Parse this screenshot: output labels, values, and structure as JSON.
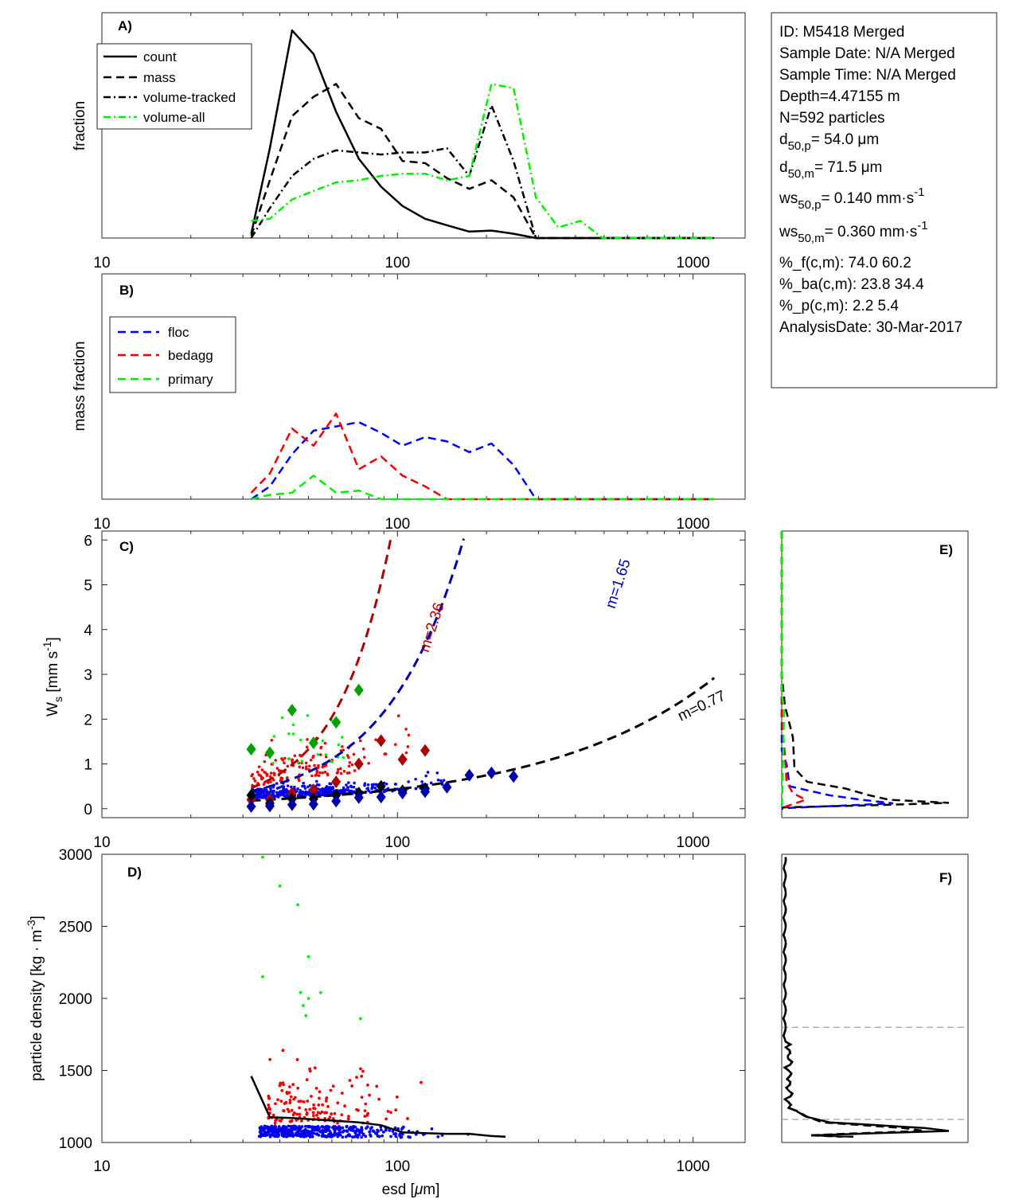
{
  "colors": {
    "green": "#00ee00",
    "red": "#ee0000",
    "blue": "#0000ee",
    "darkred": "#aa0000",
    "darkblue": "#0000aa",
    "dkgreen": "#00a000",
    "black": "#000000"
  },
  "info_lines": [
    "ID: M5418 Merged",
    "Sample Date: N/A Merged",
    "Sample Time: N/A Merged",
    "Depth=4.47155 m",
    "N=592 particles"
  ],
  "info_sub": [
    {
      "pre": "d",
      "sub": "50,p",
      "post": "=  54.0 μm"
    },
    {
      "pre": "d",
      "sub": "50,m",
      "post": "=  71.5 μm"
    },
    {
      "pre": "ws",
      "sub": "50,p",
      "post": "= 0.140 mm·s",
      "sup": "-1"
    },
    {
      "pre": "ws",
      "sub": "50,m",
      "post": "= 0.360 mm·s",
      "sup": "-1"
    }
  ],
  "info_tail": [
    "%_f(c,m): 74.0 60.2",
    "%_ba(c,m): 23.8 34.4",
    "%_p(c,m): 2.2 5.4",
    "AnalysisDate: 30-Mar-2017"
  ],
  "chart_data": [
    {
      "panel": "A)",
      "type": "line",
      "ylabel": "fraction",
      "xscale": "log",
      "xlim": [
        10,
        1500
      ],
      "ylim": [
        0,
        1
      ],
      "xticks": [
        "10",
        "100",
        "1000"
      ],
      "legend": [
        "count",
        "mass",
        "volume-tracked",
        "volume-all"
      ],
      "x": [
        32,
        37,
        44,
        52,
        62,
        74,
        88,
        104,
        124,
        147,
        175,
        208,
        247,
        294,
        350,
        416,
        494,
        588,
        700,
        832,
        990,
        1177
      ],
      "series": [
        {
          "name": "count",
          "style": "solid",
          "color": "#000000",
          "values": [
            0.02,
            0.42,
            0.97,
            0.86,
            0.59,
            0.37,
            0.24,
            0.15,
            0.09,
            0.06,
            0.03,
            0.035,
            0.02,
            0.0,
            0,
            0,
            0,
            0,
            0,
            0,
            0,
            0
          ]
        },
        {
          "name": "mass",
          "style": "dashed",
          "color": "#000000",
          "values": [
            0.01,
            0.27,
            0.57,
            0.66,
            0.72,
            0.56,
            0.51,
            0.36,
            0.35,
            0.28,
            0.23,
            0.27,
            0.19,
            0.0,
            0,
            0,
            0,
            0,
            0,
            0,
            0,
            0
          ]
        },
        {
          "name": "volume-tracked",
          "style": "dashdot",
          "color": "#000000",
          "values": [
            0.0,
            0.14,
            0.29,
            0.37,
            0.41,
            0.4,
            0.39,
            0.4,
            0.4,
            0.42,
            0.29,
            0.62,
            0.36,
            0.0,
            0,
            0,
            0,
            0,
            0,
            0,
            0,
            0
          ]
        },
        {
          "name": "volume-all",
          "style": "dashdot",
          "color": "#00ee00",
          "values": [
            0.08,
            0.09,
            0.18,
            0.22,
            0.26,
            0.27,
            0.29,
            0.3,
            0.3,
            0.27,
            0.29,
            0.72,
            0.7,
            0.19,
            0.05,
            0.08,
            0,
            0,
            0,
            0,
            0,
            0
          ]
        }
      ]
    },
    {
      "panel": "B)",
      "type": "line",
      "ylabel": "mass fraction",
      "xscale": "log",
      "xlim": [
        10,
        1500
      ],
      "ylim": [
        0,
        1
      ],
      "xticks": [
        "10",
        "100",
        "1000"
      ],
      "legend": [
        "floc",
        "bedagg",
        "primary"
      ],
      "x": [
        32,
        37,
        44,
        52,
        62,
        74,
        88,
        104,
        124,
        147,
        175,
        208,
        247,
        294,
        350,
        416,
        494,
        588,
        700,
        832,
        990,
        1177
      ],
      "series": [
        {
          "name": "floc",
          "style": "dashed",
          "color": "#0000ee",
          "values": [
            0.0,
            0.06,
            0.21,
            0.32,
            0.34,
            0.36,
            0.31,
            0.25,
            0.29,
            0.27,
            0.22,
            0.26,
            0.16,
            0.0,
            0,
            0,
            0,
            0,
            0,
            0,
            0,
            0
          ]
        },
        {
          "name": "bedagg",
          "style": "dashed",
          "color": "#ee0000",
          "values": [
            0.03,
            0.12,
            0.33,
            0.25,
            0.4,
            0.14,
            0.2,
            0.11,
            0.06,
            0.0,
            0,
            0,
            0,
            0,
            0,
            0,
            0,
            0,
            0,
            0,
            0,
            0
          ]
        },
        {
          "name": "primary",
          "style": "dashed",
          "color": "#00ee00",
          "values": [
            0.0,
            0.02,
            0.03,
            0.11,
            0.03,
            0.04,
            0.0,
            0,
            0,
            0,
            0,
            0,
            0,
            0,
            0,
            0,
            0,
            0,
            0,
            0,
            0,
            0
          ]
        }
      ]
    },
    {
      "panel": "C)",
      "type": "scatter",
      "ylabel": "W_s [mm s^-1]",
      "xscale": "log",
      "xlim": [
        10,
        1500
      ],
      "ylim": [
        -0.2,
        6.2
      ],
      "xticks": [
        "10",
        "100",
        "1000"
      ],
      "yticks": [
        "0",
        "1",
        "2",
        "3",
        "4",
        "5",
        "6"
      ],
      "fits": [
        {
          "label": "m=2.36",
          "color": "#aa0000",
          "a": 0.00013,
          "m": 2.36
        },
        {
          "label": "m=1.65",
          "color": "#0000aa",
          "a": 0.00129,
          "m": 1.65
        },
        {
          "label": "m=0.77",
          "color": "#000000",
          "a": 0.0126,
          "m": 0.77
        }
      ],
      "diamonds": [
        {
          "color": "#00a000",
          "points": [
            [
              32,
              1.33
            ],
            [
              37,
              1.25
            ],
            [
              44,
              2.2
            ],
            [
              52,
              1.47
            ],
            [
              62,
              1.93
            ],
            [
              74,
              2.65
            ]
          ]
        },
        {
          "color": "#aa0000",
          "points": [
            [
              32,
              0.2
            ],
            [
              37,
              0.2
            ],
            [
              44,
              0.35
            ],
            [
              52,
              0.42
            ],
            [
              62,
              0.6
            ],
            [
              74,
              1.0
            ],
            [
              88,
              1.52
            ],
            [
              104,
              1.1
            ],
            [
              124,
              1.3
            ]
          ]
        },
        {
          "color": "#000000",
          "points": [
            [
              32,
              0.3
            ],
            [
              37,
              0.12
            ],
            [
              44,
              0.22
            ],
            [
              52,
              0.22
            ],
            [
              62,
              0.3
            ],
            [
              74,
              0.35
            ],
            [
              88,
              0.5
            ],
            [
              104,
              0.4
            ],
            [
              124,
              0.45
            ]
          ]
        },
        {
          "color": "#0000aa",
          "points": [
            [
              32,
              0.05
            ],
            [
              37,
              0.06
            ],
            [
              44,
              0.09
            ],
            [
              52,
              0.1
            ],
            [
              62,
              0.17
            ],
            [
              74,
              0.25
            ],
            [
              88,
              0.26
            ],
            [
              104,
              0.35
            ],
            [
              124,
              0.38
            ],
            [
              147,
              0.48
            ],
            [
              175,
              0.75
            ],
            [
              208,
              0.8
            ],
            [
              247,
              0.72
            ]
          ]
        }
      ],
      "scatter_counts": {
        "green": 22,
        "red": 140,
        "blue": 420
      }
    },
    {
      "panel": "D)",
      "type": "scatter",
      "xlabel": "esd [μm]",
      "ylabel": "particle density [kg · m^-3]",
      "xscale": "log",
      "xlim": [
        10,
        1500
      ],
      "ylim": [
        1000,
        3000
      ],
      "xticks": [
        "10",
        "100",
        "1000"
      ],
      "yticks": [
        "1000",
        "1500",
        "2000",
        "2500",
        "3000"
      ],
      "median_line": {
        "x": [
          32,
          37,
          44,
          52,
          62,
          74,
          88,
          104,
          124,
          147,
          175,
          208,
          232
        ],
        "y": [
          1460,
          1175,
          1170,
          1160,
          1150,
          1140,
          1120,
          1070,
          1065,
          1060,
          1060,
          1045,
          1040
        ]
      },
      "green_points": [
        [
          35,
          2980
        ],
        [
          40,
          2780
        ],
        [
          46,
          2650
        ],
        [
          50,
          2290
        ],
        [
          35,
          2150
        ],
        [
          47,
          2040
        ],
        [
          50,
          2000
        ],
        [
          55,
          2040
        ],
        [
          48,
          1950
        ],
        [
          49,
          1880
        ],
        [
          75,
          1860
        ]
      ],
      "scatter_counts": {
        "red": 150,
        "blue": 420
      }
    },
    {
      "panel": "E)",
      "type": "line",
      "note": "marginal distributions of W_s"
    },
    {
      "panel": "F)",
      "type": "line",
      "note": "marginal distribution of particle density",
      "ref_lines": [
        1800,
        1160
      ]
    }
  ]
}
